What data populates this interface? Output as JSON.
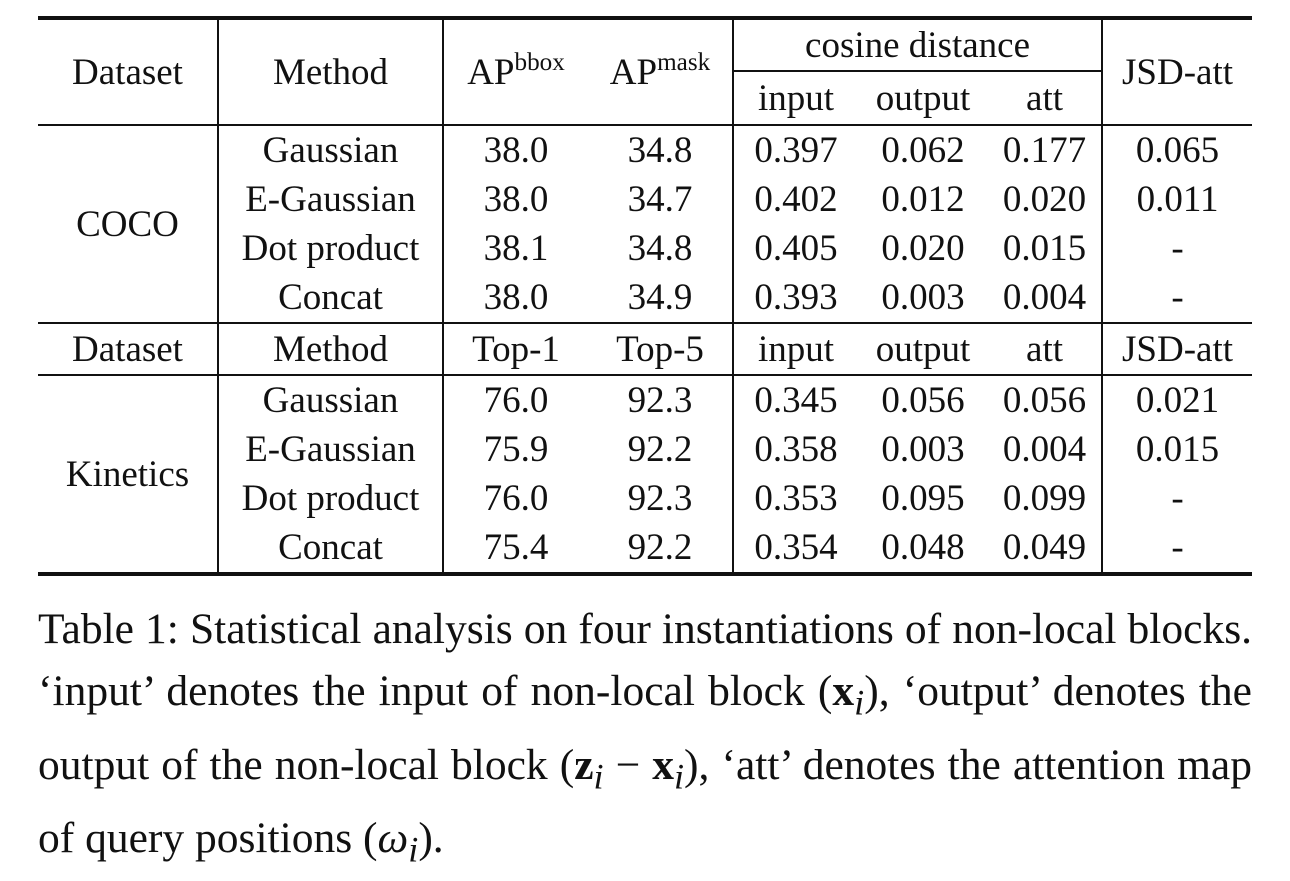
{
  "table": {
    "header": {
      "dataset": "Dataset",
      "method": "Method",
      "ap_bbox_base": "AP",
      "ap_bbox_sup": "bbox",
      "ap_mask_base": "AP",
      "ap_mask_sup": "mask",
      "cosine_distance": "cosine distance",
      "input": "input",
      "output": "output",
      "att": "att",
      "jsd_att": "JSD-att"
    },
    "coco": {
      "dataset": "COCO",
      "rows": [
        {
          "method": "Gaussian",
          "v1": "38.0",
          "v2": "34.8",
          "input": "0.397",
          "output": "0.062",
          "att": "0.177",
          "jsd": "0.065"
        },
        {
          "method": "E-Gaussian",
          "v1": "38.0",
          "v2": "34.7",
          "input": "0.402",
          "output": "0.012",
          "att": "0.020",
          "jsd": "0.011"
        },
        {
          "method": "Dot product",
          "v1": "38.1",
          "v2": "34.8",
          "input": "0.405",
          "output": "0.020",
          "att": "0.015",
          "jsd": "-"
        },
        {
          "method": "Concat",
          "v1": "38.0",
          "v2": "34.9",
          "input": "0.393",
          "output": "0.003",
          "att": "0.004",
          "jsd": "-"
        }
      ]
    },
    "kinetics_header": {
      "dataset": "Dataset",
      "method": "Method",
      "top1": "Top-1",
      "top5": "Top-5",
      "input": "input",
      "output": "output",
      "att": "att",
      "jsd_att": "JSD-att"
    },
    "kinetics": {
      "dataset": "Kinetics",
      "rows": [
        {
          "method": "Gaussian",
          "v1": "76.0",
          "v2": "92.3",
          "input": "0.345",
          "output": "0.056",
          "att": "0.056",
          "jsd": "0.021"
        },
        {
          "method": "E-Gaussian",
          "v1": "75.9",
          "v2": "92.2",
          "input": "0.358",
          "output": "0.003",
          "att": "0.004",
          "jsd": "0.015"
        },
        {
          "method": "Dot product",
          "v1": "76.0",
          "v2": "92.3",
          "input": "0.353",
          "output": "0.095",
          "att": "0.099",
          "jsd": "-"
        },
        {
          "method": "Concat",
          "v1": "75.4",
          "v2": "92.2",
          "input": "0.354",
          "output": "0.048",
          "att": "0.049",
          "jsd": "-"
        }
      ]
    }
  },
  "caption": {
    "s1": "Table 1:  Statistical analysis on four instantiations of non-local blocks.  ‘input’ denotes the input of non-local block (",
    "x1": "x",
    "sub1": "i",
    "s2": "), ‘output’ denotes the output of the non-local block (",
    "z1": "z",
    "sub2": "i",
    "minus": " − ",
    "x2": "x",
    "sub3": "i",
    "s3": "), ‘att’ denotes the attention map of query positions (",
    "omega": "ω",
    "sub4": "i",
    "s4": ")."
  }
}
